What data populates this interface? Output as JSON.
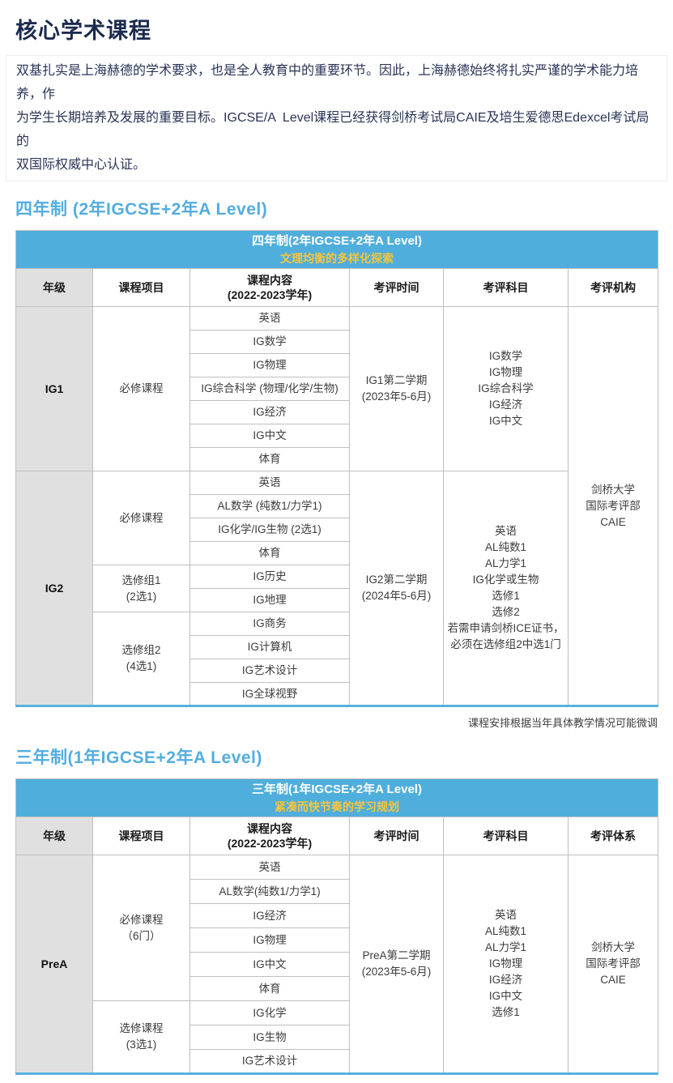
{
  "page": {
    "title": "核心学术课程",
    "intro": "双基扎实是上海赫德的学术要求，也是全人教育中的重要环节。因此，上海赫德始终将扎实严谨的学术能力培养，作\n为学生长期培养及发展的重要目标。IGCSE/A  Level课程已经获得剑桥考试局CAIE及培生爱德思Edexcel考试局的\n双国际权威中心认证。"
  },
  "colors": {
    "title_navy": "#1B2A4E",
    "heading_blue": "#53ADDF",
    "banner_blue": "#4FAEDB",
    "banner_yellow": "#F7C53C",
    "grade_cell_gray": "#E0E0E0",
    "border_gray": "#BFBFBF"
  },
  "sections": [
    {
      "heading": "四年制 (2年IGCSE+2年A Level)",
      "banner_title": "四年制(2年IGCSE+2年A Level)",
      "banner_subtitle": "文理均衡的多样化探索",
      "headers": [
        "年级",
        "课程项目",
        "课程内容\n(2022-2023学年)",
        "考评时间",
        "考评科目",
        "考评机构"
      ],
      "columns": [
        {
          "name": "grade",
          "cells": [
            {
              "text": "IG1",
              "rows": 7
            },
            {
              "text": "IG2",
              "rows": 10
            }
          ]
        },
        {
          "name": "project",
          "cells": [
            {
              "text": "必修课程",
              "rows": 7
            },
            {
              "text": "必修课程",
              "rows": 4
            },
            {
              "text": "选修组1\n(2选1)",
              "rows": 2
            },
            {
              "text": "选修组2\n(4选1)",
              "rows": 4
            }
          ]
        },
        {
          "name": "content",
          "cells": [
            {
              "text": "英语",
              "rows": 1
            },
            {
              "text": "IG数学",
              "rows": 1
            },
            {
              "text": "IG物理",
              "rows": 1
            },
            {
              "text": "IG综合科学 (物理/化学/生物)",
              "rows": 1
            },
            {
              "text": "IG经济",
              "rows": 1
            },
            {
              "text": "IG中文",
              "rows": 1
            },
            {
              "text": "体育",
              "rows": 1
            },
            {
              "text": "英语",
              "rows": 1
            },
            {
              "text": "AL数学 (纯数1/力学1)",
              "rows": 1
            },
            {
              "text": "IG化学/IG生物 (2选1)",
              "rows": 1
            },
            {
              "text": "体育",
              "rows": 1
            },
            {
              "text": "IG历史",
              "rows": 1
            },
            {
              "text": "IG地理",
              "rows": 1
            },
            {
              "text": "IG商务",
              "rows": 1
            },
            {
              "text": "IG计算机",
              "rows": 1
            },
            {
              "text": "IG艺术设计",
              "rows": 1
            },
            {
              "text": "IG全球视野",
              "rows": 1
            }
          ]
        },
        {
          "name": "time",
          "cells": [
            {
              "text": "IG1第二学期\n(2023年5-6月)",
              "rows": 7
            },
            {
              "text": "IG2第二学期\n(2024年5-6月)",
              "rows": 10
            }
          ]
        },
        {
          "name": "subject",
          "cells": [
            {
              "text": "IG数学\nIG物理\nIG综合科学\nIG经济\nIG中文",
              "rows": 7
            },
            {
              "text": "英语\nAL纯数1\nAL力学1\nIG化学或生物\n选修1\n选修2\n若需申请剑桥ICE证书，\n必须在选修组2中选1门",
              "rows": 10
            }
          ]
        },
        {
          "name": "agency",
          "cells": [
            {
              "text": "剑桥大学\n国际考评部\nCAIE",
              "rows": 17
            }
          ]
        }
      ],
      "note": "课程安排根据当年具体教学情况可能微调"
    },
    {
      "heading": "三年制(1年IGCSE+2年A Level)",
      "banner_title": "三年制(1年IGCSE+2年A Level)",
      "banner_subtitle": "紧凑而快节奏的学习规划",
      "headers": [
        "年级",
        "课程项目",
        "课程内容\n(2022-2023学年)",
        "考评时间",
        "考评科目",
        "考评体系"
      ],
      "columns": [
        {
          "name": "grade",
          "cells": [
            {
              "text": "PreA",
              "rows": 9
            }
          ]
        },
        {
          "name": "project",
          "cells": [
            {
              "text": "必修课程\n（6门）",
              "rows": 6
            },
            {
              "text": "选修课程\n(3选1)",
              "rows": 3
            }
          ]
        },
        {
          "name": "content",
          "cells": [
            {
              "text": "英语",
              "rows": 1
            },
            {
              "text": "AL数学(纯数1/力学1)",
              "rows": 1
            },
            {
              "text": "IG经济",
              "rows": 1
            },
            {
              "text": "IG物理",
              "rows": 1
            },
            {
              "text": "IG中文",
              "rows": 1
            },
            {
              "text": "体育",
              "rows": 1
            },
            {
              "text": "IG化学",
              "rows": 1
            },
            {
              "text": "IG生物",
              "rows": 1
            },
            {
              "text": "IG艺术设计",
              "rows": 1
            }
          ]
        },
        {
          "name": "time",
          "cells": [
            {
              "text": "PreA第二学期\n(2023年5-6月)",
              "rows": 9
            }
          ]
        },
        {
          "name": "subject",
          "cells": [
            {
              "text": "英语\nAL纯数1\nAL力学1\nIG物理\nIG经济\nIG中文\n选修1",
              "rows": 9
            }
          ]
        },
        {
          "name": "agency",
          "cells": [
            {
              "text": "剑桥大学\n国际考评部\nCAIE",
              "rows": 9
            }
          ]
        }
      ],
      "note": null
    }
  ]
}
